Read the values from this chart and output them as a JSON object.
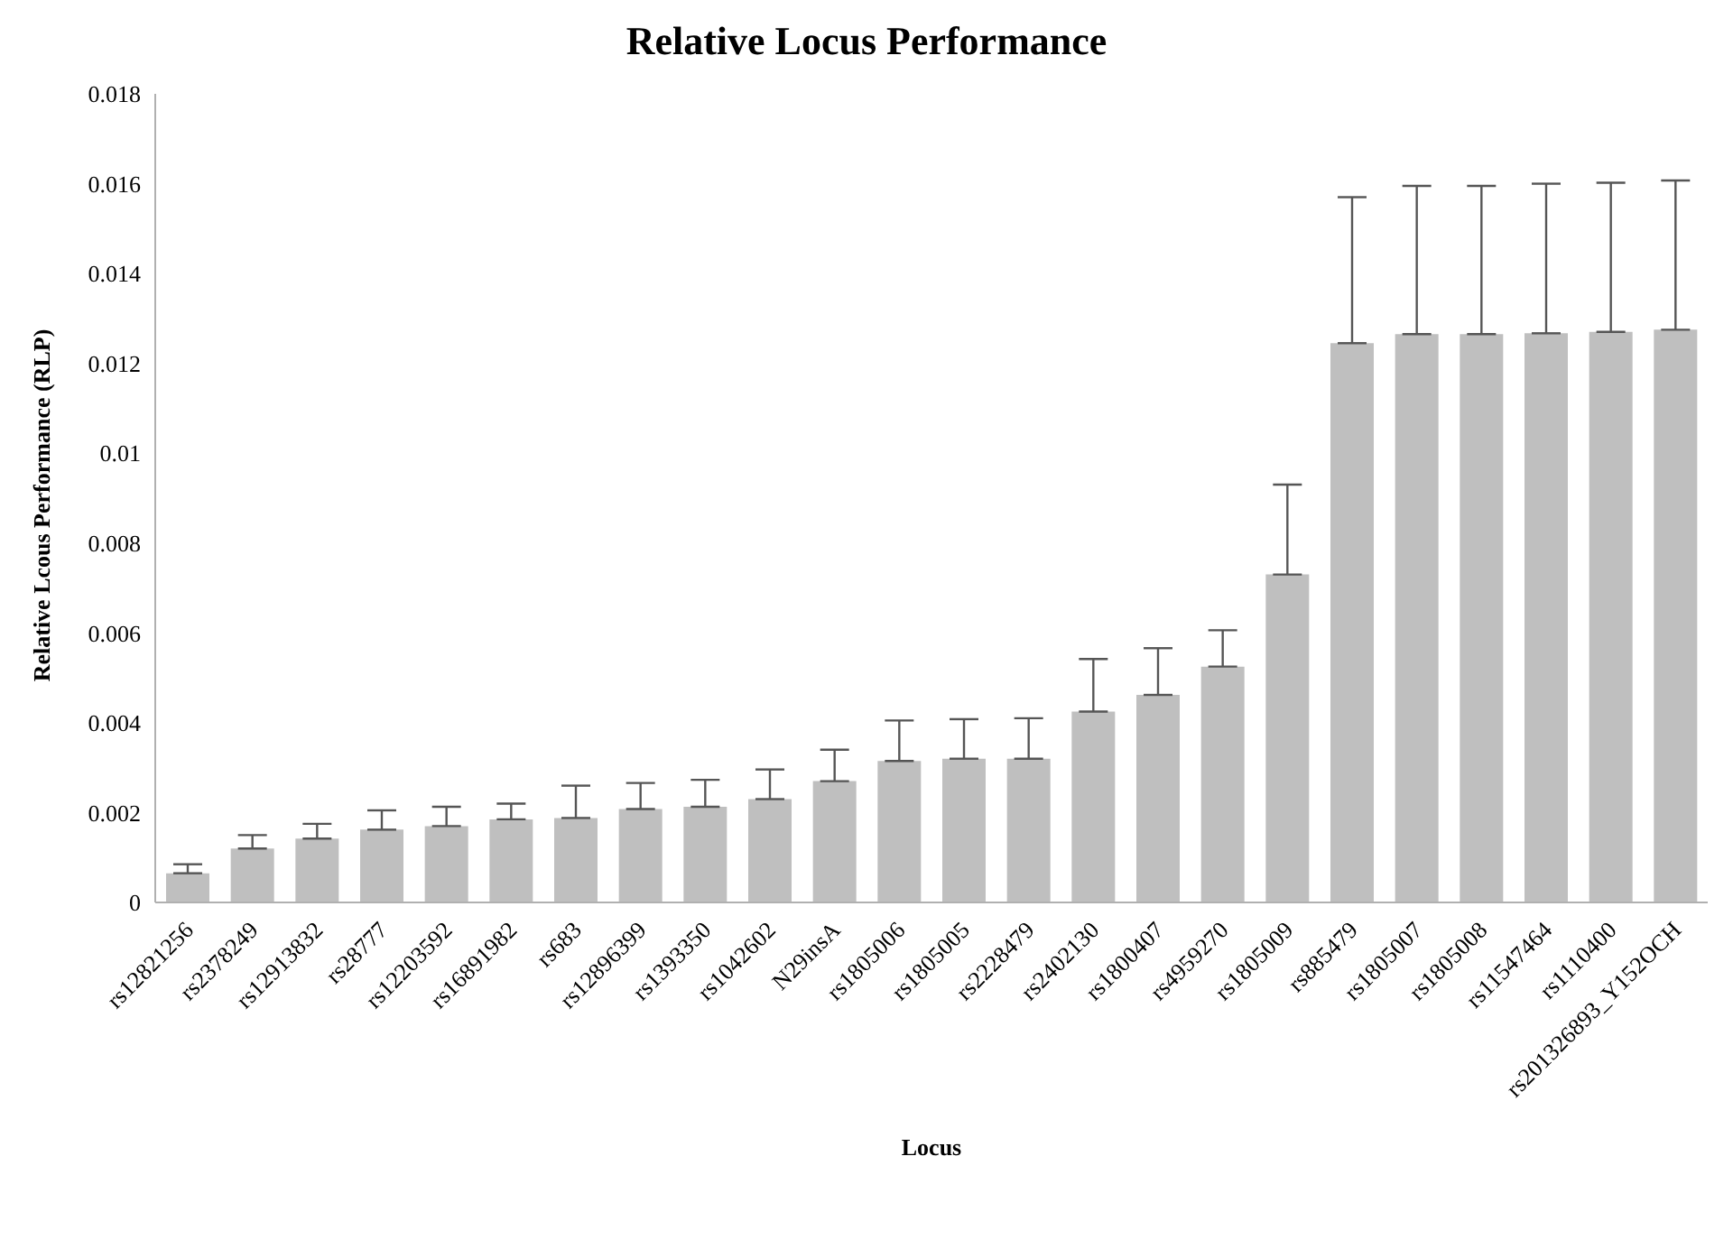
{
  "chart_data": {
    "type": "bar",
    "title": "Relative Locus Performance",
    "xlabel": "Locus",
    "ylabel": "Relative Lcous Performance (RLP)",
    "categories": [
      "rs12821256",
      "rs2378249",
      "rs12913832",
      "rs28777",
      "rs12203592",
      "rs16891982",
      "rs683",
      "rs12896399",
      "rs1393350",
      "rs1042602",
      "N29insA",
      "rs1805006",
      "rs1805005",
      "rs2228479",
      "rs2402130",
      "rs1800407",
      "rs4959270",
      "rs1805009",
      "rs885479",
      "rs1805007",
      "rs1805008",
      "rs11547464",
      "rs1110400",
      "rs201326893_Y152OCH"
    ],
    "values": [
      0.00065,
      0.0012,
      0.00142,
      0.00162,
      0.0017,
      0.00185,
      0.00188,
      0.00208,
      0.00213,
      0.0023,
      0.0027,
      0.00315,
      0.0032,
      0.0032,
      0.00425,
      0.00462,
      0.00525,
      0.0073,
      0.01245,
      0.01265,
      0.01265,
      0.01267,
      0.0127,
      0.01275
    ],
    "errors": [
      [
        0.00065,
        0.00085
      ],
      [
        0.0012,
        0.0015
      ],
      [
        0.00142,
        0.00175
      ],
      [
        0.00162,
        0.00205
      ],
      [
        0.0017,
        0.00213
      ],
      [
        0.00185,
        0.0022
      ],
      [
        0.00188,
        0.0026
      ],
      [
        0.00208,
        0.00266
      ],
      [
        0.00213,
        0.00273
      ],
      [
        0.0023,
        0.00296
      ],
      [
        0.0027,
        0.0034
      ],
      [
        0.00315,
        0.00405
      ],
      [
        0.0032,
        0.00408
      ],
      [
        0.0032,
        0.0041
      ],
      [
        0.00425,
        0.00542
      ],
      [
        0.00462,
        0.00566
      ],
      [
        0.00525,
        0.00606
      ],
      [
        0.0073,
        0.0093
      ],
      [
        0.01245,
        0.0157
      ],
      [
        0.01265,
        0.01595
      ],
      [
        0.01265,
        0.01595
      ],
      [
        0.01267,
        0.016
      ],
      [
        0.0127,
        0.01602
      ],
      [
        0.01275,
        0.01607
      ]
    ],
    "color": "#bfbfbf",
    "ylim": [
      0,
      0.018
    ],
    "yticks": [
      0,
      0.002,
      0.004,
      0.006,
      0.008,
      0.01,
      0.012,
      0.014,
      0.016,
      0.018
    ],
    "grid": false,
    "legend": false
  }
}
